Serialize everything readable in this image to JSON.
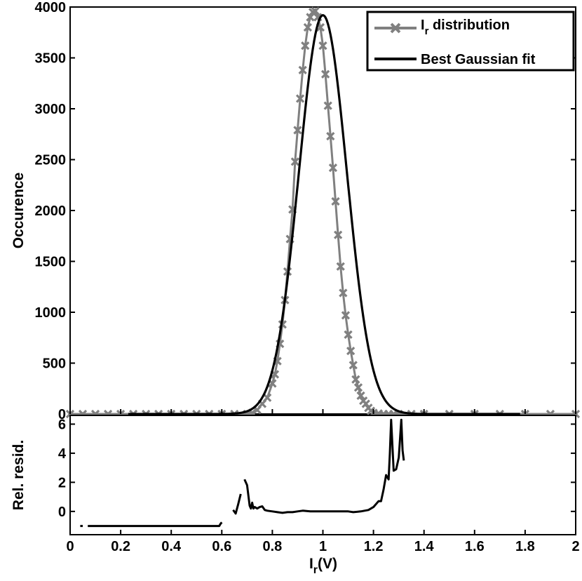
{
  "chart_data": [
    {
      "type": "line",
      "panel": "main",
      "xlabel_main": "I",
      "xlabel_sub": "r",
      "xlabel_unit": "(V)",
      "ylabel": "Occurence",
      "xlim": [
        0,
        2
      ],
      "ylim": [
        0,
        4000
      ],
      "x_ticks": [
        "0",
        "0.2",
        "0.4",
        "0.6",
        "0.8",
        "1",
        "1.2",
        "1.4",
        "1.6",
        "1.8",
        "2"
      ],
      "y_ticks": [
        "0",
        "500",
        "1000",
        "1500",
        "2000",
        "2500",
        "3000",
        "3500",
        "4000"
      ],
      "legend_position": "top-right",
      "series": [
        {
          "name_main": "I",
          "name_sub": "r",
          "name_rest": " distribution",
          "color": "#808080",
          "marker": "x",
          "x": [
            0.0,
            0.05,
            0.1,
            0.15,
            0.2,
            0.25,
            0.3,
            0.35,
            0.4,
            0.45,
            0.5,
            0.55,
            0.6,
            0.65,
            0.7,
            0.72,
            0.74,
            0.76,
            0.78,
            0.8,
            0.81,
            0.82,
            0.83,
            0.84,
            0.85,
            0.86,
            0.87,
            0.88,
            0.89,
            0.9,
            0.91,
            0.92,
            0.93,
            0.94,
            0.95,
            0.96,
            0.97,
            0.98,
            0.99,
            1.0,
            1.01,
            1.02,
            1.03,
            1.04,
            1.05,
            1.06,
            1.07,
            1.08,
            1.09,
            1.1,
            1.11,
            1.12,
            1.13,
            1.14,
            1.15,
            1.16,
            1.17,
            1.18,
            1.19,
            1.2,
            1.22,
            1.24,
            1.26,
            1.28,
            1.3,
            1.35,
            1.4,
            1.5,
            1.6,
            1.7,
            1.8,
            1.9,
            2.0
          ],
          "values": [
            0,
            0,
            0,
            0,
            0,
            0,
            0,
            0,
            0,
            0,
            0,
            0,
            0,
            0,
            0,
            10,
            40,
            100,
            160,
            300,
            390,
            520,
            690,
            880,
            1120,
            1400,
            1720,
            2010,
            2480,
            2790,
            3100,
            3380,
            3620,
            3800,
            3900,
            3950,
            3960,
            3900,
            3800,
            3620,
            3340,
            3030,
            2730,
            2420,
            2090,
            1760,
            1450,
            1190,
            970,
            780,
            620,
            480,
            340,
            260,
            180,
            130,
            100,
            60,
            30,
            10,
            5,
            0,
            0,
            0,
            0,
            0,
            0,
            0,
            0,
            0,
            0,
            0,
            0
          ]
        },
        {
          "name": "Best Gaussian fit",
          "color": "#000000",
          "function": "gaussian",
          "amplitude": 3920,
          "mean": 1.0,
          "sigma": 0.095,
          "x_range": [
            0.23,
            1.78
          ]
        }
      ]
    },
    {
      "type": "line",
      "panel": "residual",
      "ylabel": "Rel. resid.",
      "xlim": [
        0,
        2
      ],
      "ylim": [
        -1.6,
        6.6
      ],
      "y_ticks": [
        "0",
        "2",
        "4",
        "6"
      ],
      "series": [
        {
          "color": "#000000",
          "segments": [
            {
              "x": [
                0.04,
                0.05
              ],
              "y": [
                -1,
                -1
              ]
            },
            {
              "x": [
                0.07,
                0.3,
                0.5,
                0.59,
                0.595,
                0.6
              ],
              "y": [
                -1,
                -1,
                -1,
                -1,
                -0.85,
                -0.75
              ]
            },
            {
              "x": [
                0.645,
                0.655,
                0.665,
                0.675
              ],
              "y": [
                0.1,
                -0.15,
                0.5,
                1.2
              ]
            },
            {
              "x": [
                0.69,
                0.7,
                0.705,
                0.71,
                0.715,
                0.72,
                0.725,
                0.73,
                0.74,
                0.75,
                0.76,
                0.77,
                0.78,
                0.8,
                0.82,
                0.84,
                0.86,
                0.88,
                0.9,
                0.92,
                0.95,
                1.0,
                1.05,
                1.1,
                1.12,
                1.15,
                1.18,
                1.2,
                1.22,
                1.23,
                1.24,
                1.25,
                1.26,
                1.265,
                1.27,
                1.28,
                1.29,
                1.3,
                1.31,
                1.315,
                1.32
              ],
              "y": [
                2.2,
                1.8,
                1.1,
                0.4,
                0.2,
                0.6,
                0.2,
                0.3,
                0.2,
                0.3,
                0.35,
                0.1,
                0.05,
                0.0,
                -0.05,
                -0.1,
                -0.05,
                -0.05,
                0.0,
                0.05,
                0.0,
                0.0,
                0.0,
                0.0,
                -0.05,
                0.0,
                0.1,
                0.3,
                0.7,
                0.7,
                1.5,
                2.5,
                2.2,
                4.0,
                6.3,
                2.8,
                2.9,
                3.7,
                6.3,
                4.2,
                3.5
              ]
            }
          ]
        }
      ]
    }
  ]
}
